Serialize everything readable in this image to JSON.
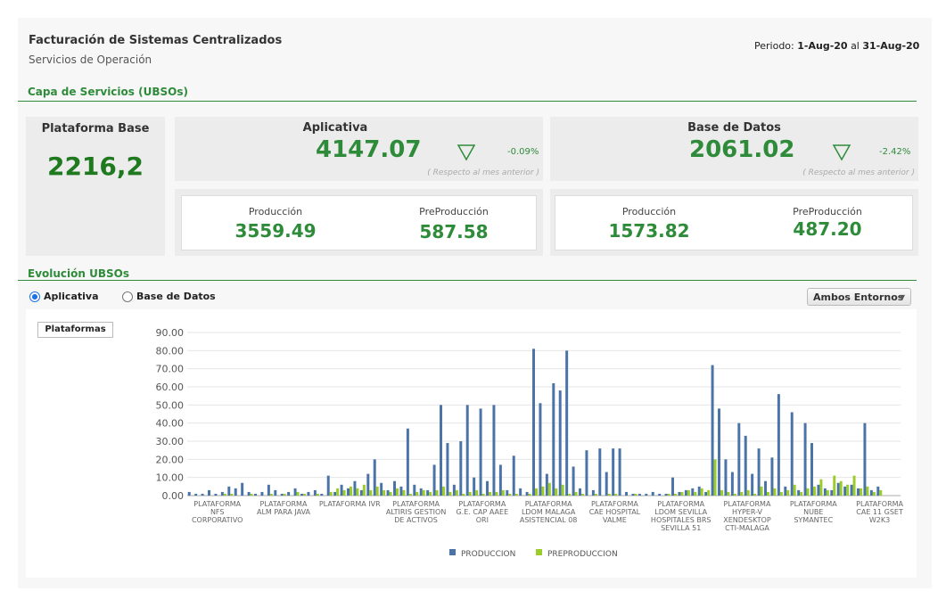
{
  "header": {
    "title": "Facturación de Sistemas Centralizados",
    "subtitle": "Servicios de Operación",
    "period_label": "Periodo:",
    "period_from": "1-Aug-20",
    "period_sep": "al",
    "period_to": "31-Aug-20"
  },
  "section1": "Capa de Servicios (UBSOs)",
  "base": {
    "title": "Plataforma Base",
    "value": "2216,2"
  },
  "aplicativa": {
    "title": "Aplicativa",
    "value": "4147.07",
    "change": "-0.09%",
    "note": "( Respecto al mes anterior )",
    "prod_label": "Producción",
    "prod_value": "3559.49",
    "preprod_label": "PreProducción",
    "preprod_value": "587.58"
  },
  "basedatos": {
    "title": "Base de Datos",
    "value": "2061.02",
    "change": "-2.42%",
    "note": "( Respecto al mes anterior )",
    "prod_label": "Producción",
    "prod_value": "1573.82",
    "preprod_label": "PreProducción",
    "preprod_value": "487.20"
  },
  "section2": "Evolución UBSOs",
  "controls": {
    "radio1": "Aplicativa",
    "radio2": "Base de Datos",
    "dropdown": "Ambos Entornos",
    "button": "Plataformas"
  },
  "chart_data": {
    "type": "bar",
    "grid": true,
    "legend": "bottom",
    "ylim": [
      0,
      90
    ],
    "yticks": [
      {
        "value": 0,
        "label": "0.00"
      },
      {
        "value": 10,
        "label": "10.00"
      },
      {
        "value": 20,
        "label": "20.00"
      },
      {
        "value": 30,
        "label": "30.00"
      },
      {
        "value": 40,
        "label": "40.00"
      },
      {
        "value": 50,
        "label": "50.00"
      },
      {
        "value": 60,
        "label": "60.00"
      },
      {
        "value": 70,
        "label": "70.00"
      },
      {
        "value": 80,
        "label": "80.00"
      },
      {
        "value": 90,
        "label": "90.00"
      }
    ],
    "categories": [
      "PLATAFORMA\nNFS\nCORPORATIVO",
      null,
      null,
      null,
      null,
      null,
      null,
      null,
      null,
      null,
      "PLATAFORMA\nALM PARA JAVA",
      null,
      null,
      null,
      null,
      null,
      null,
      null,
      null,
      null,
      "PLATAFORMA IVR",
      null,
      null,
      null,
      null,
      null,
      null,
      null,
      null,
      null,
      "PLATAFORMA\nALTIRIS GESTION\nDE ACTIVOS",
      null,
      null,
      null,
      null,
      null,
      null,
      null,
      null,
      null,
      "PLATAFORMA\nG.E. CAP AAEE\nORI",
      null,
      null,
      null,
      null,
      null,
      null,
      null,
      null,
      null,
      "PLATAFORMA\nLDOM MALAGA\nASISTENCIAL 08",
      null,
      null,
      null,
      null,
      null,
      null,
      null,
      null,
      null,
      "PLATAFORMA\nCAE HOSPITAL\nVALME",
      null,
      null,
      null,
      null,
      null,
      null,
      null,
      null,
      null,
      "PLATAFORMA\nLDOM SEVILLA\nHOSPITALES BRS\nSEVILLA 51",
      null,
      null,
      null,
      null,
      null,
      null,
      null,
      null,
      null,
      "PLATAFORMA\nHYPER-V\nXENDESKTOP\nCTI-MALAGA",
      null,
      null,
      null,
      null,
      null,
      null,
      null,
      null,
      null,
      "PLATAFORMA\nNUBE\nSYMANTEC",
      null,
      null,
      null,
      null,
      null,
      null,
      null,
      null,
      null,
      "PLATAFORMA\nCAE 11 GSET\nW2K3",
      null,
      null,
      null,
      null
    ],
    "series": [
      {
        "name": "PRODUCCION",
        "color": "#4a73a8",
        "values": [
          2,
          1,
          1,
          3,
          1,
          2,
          5,
          4,
          7,
          2,
          1,
          2,
          6,
          3,
          1,
          2,
          4,
          1,
          2,
          3,
          1,
          11,
          2,
          6,
          4,
          8,
          3,
          12,
          20,
          7,
          3,
          8,
          5,
          37,
          6,
          4,
          3,
          17,
          50,
          29,
          6,
          30,
          50,
          10,
          48,
          8,
          50,
          17,
          3,
          22,
          4,
          2,
          81,
          51,
          12,
          62,
          58,
          80,
          16,
          4,
          25,
          3,
          26,
          13,
          26,
          26,
          2,
          1,
          1,
          1,
          2,
          1,
          1,
          10,
          2,
          3,
          4,
          5,
          2,
          72,
          48,
          20,
          13,
          40,
          33,
          12,
          26,
          8,
          21,
          56,
          5,
          46,
          3,
          40,
          29,
          6,
          4,
          3,
          7,
          5,
          6,
          4,
          40,
          3,
          5
        ]
      },
      {
        "name": "PREPRODUCCION",
        "color": "#9ccc2a",
        "values": [
          0,
          0,
          0,
          0,
          0,
          1,
          1,
          0,
          0,
          1,
          0,
          0,
          1,
          0,
          1,
          0,
          2,
          1,
          0,
          1,
          0,
          2,
          4,
          3,
          5,
          4,
          6,
          3,
          5,
          3,
          2,
          4,
          3,
          1,
          2,
          3,
          2,
          3,
          5,
          2,
          3,
          1,
          2,
          3,
          1,
          2,
          2,
          3,
          1,
          1,
          0,
          1,
          4,
          5,
          7,
          4,
          6,
          1,
          2,
          1,
          0,
          1,
          0,
          1,
          1,
          0,
          0,
          1,
          0,
          0,
          0,
          0,
          1,
          1,
          2,
          3,
          2,
          4,
          3,
          20,
          3,
          2,
          1,
          2,
          3,
          1,
          5,
          2,
          4,
          2,
          3,
          6,
          2,
          4,
          5,
          9,
          3,
          11,
          8,
          6,
          11,
          4,
          5,
          2,
          3
        ]
      }
    ]
  }
}
